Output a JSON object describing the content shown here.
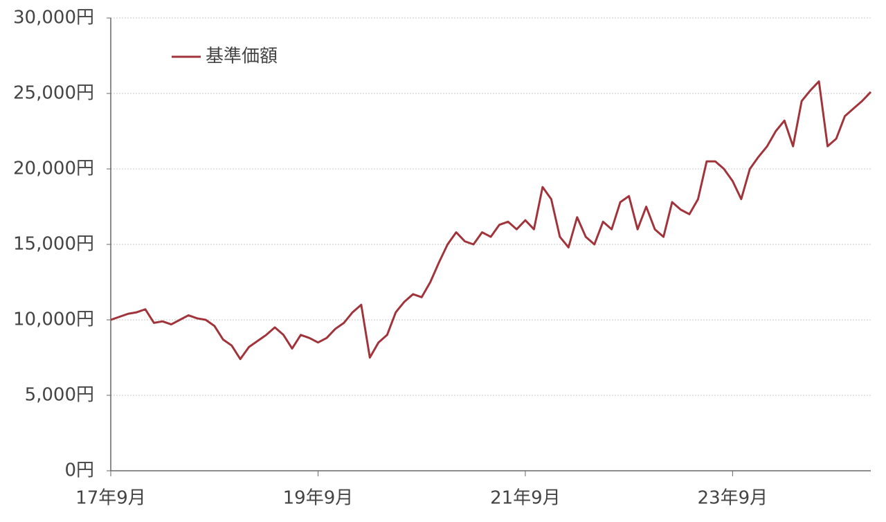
{
  "chart_data": {
    "type": "line",
    "categories": [
      "17年9月",
      null,
      null,
      null,
      null,
      null,
      null,
      null,
      null,
      null,
      null,
      null,
      null,
      null,
      null,
      null,
      null,
      null,
      null,
      null,
      null,
      null,
      null,
      null,
      "19年9月",
      null,
      null,
      null,
      null,
      null,
      null,
      null,
      null,
      null,
      null,
      null,
      null,
      null,
      null,
      null,
      null,
      null,
      null,
      null,
      null,
      null,
      null,
      null,
      "21年9月",
      null,
      null,
      null,
      null,
      null,
      null,
      null,
      null,
      null,
      null,
      null,
      null,
      null,
      null,
      null,
      null,
      null,
      null,
      null,
      null,
      null,
      null,
      null,
      "23年9月",
      null,
      null,
      null,
      null,
      null,
      null,
      null,
      null,
      null,
      null,
      null,
      null,
      null,
      null,
      null,
      null
    ],
    "series": [
      {
        "name": "基準価額",
        "color": "#a0343a",
        "values": [
          10000,
          10200,
          10400,
          10500,
          10700,
          9800,
          9900,
          9700,
          10000,
          10300,
          10100,
          10000,
          9600,
          8700,
          8300,
          7400,
          8200,
          8600,
          9000,
          9500,
          9000,
          8100,
          9000,
          8800,
          8500,
          8800,
          9400,
          9800,
          10500,
          11000,
          7500,
          8500,
          9000,
          10500,
          11200,
          11700,
          11500,
          12500,
          13800,
          15000,
          15800,
          15200,
          15000,
          15800,
          15500,
          16300,
          16500,
          16000,
          16600,
          16000,
          18800,
          18000,
          15500,
          14800,
          16800,
          15500,
          15000,
          16500,
          16000,
          17800,
          18200,
          16000,
          17500,
          16000,
          15500,
          17800,
          17300,
          17000,
          18000,
          20500,
          20500,
          20000,
          19200,
          18000,
          20000,
          20800,
          21500,
          22500,
          23200,
          21500,
          24500,
          25200,
          25800,
          21500,
          22000,
          23500,
          24000,
          24500,
          25100
        ]
      }
    ],
    "ylim": [
      0,
      30000
    ],
    "yticks": [
      {
        "value": 0,
        "label": "0円"
      },
      {
        "value": 5000,
        "label": "5,000円"
      },
      {
        "value": 10000,
        "label": "10,000円"
      },
      {
        "value": 15000,
        "label": "15,000円"
      },
      {
        "value": 20000,
        "label": "20,000円"
      },
      {
        "value": 25000,
        "label": "25,000円"
      },
      {
        "value": 30000,
        "label": "30,000円"
      }
    ],
    "grid": true,
    "legend": "top-left"
  }
}
